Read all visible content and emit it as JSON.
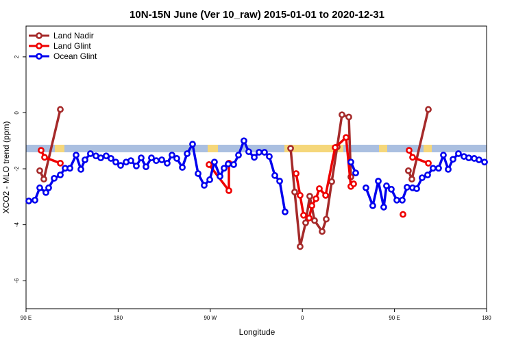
{
  "chart_data": {
    "type": "line",
    "title": "10N-15N June (Ver 10_raw)   2015-01-01 to 2020-12-31",
    "x_label": "Longitude",
    "y_label": "XCO2 - MLO trend (ppm)",
    "xlim": [
      90,
      540
    ],
    "ylim": [
      -7,
      3.1
    ],
    "xticks": [
      {
        "value": 90,
        "label": "90 E"
      },
      {
        "value": 180,
        "label": "180"
      },
      {
        "value": 270,
        "label": "90 W"
      },
      {
        "value": 360,
        "label": "0"
      },
      {
        "value": 450,
        "label": "90 E"
      },
      {
        "value": 540,
        "label": "180"
      }
    ],
    "yticks": [
      -6,
      -4,
      -2,
      0,
      2
    ],
    "legend": "top-left",
    "series": [
      {
        "name": "Land Nadir",
        "color": "#a52a2a",
        "x": [
          103.4,
          107.4,
          123.5,
          null,
          348.5,
          352.5,
          357.8,
          363.2,
          367.2,
          371.9,
          379.3,
          383.3,
          388.7,
          394.0,
          398.7,
          405.4,
          407.4,
          null,
          463.6,
          467.0,
          483.1
        ],
        "values": [
          -2.07,
          -2.37,
          0.12,
          null,
          -1.27,
          -2.83,
          -4.78,
          -3.93,
          -2.98,
          -3.85,
          -4.24,
          -3.8,
          -2.46,
          -1.22,
          -0.07,
          -0.15,
          -2.29,
          null,
          -2.07,
          -2.37,
          0.12
        ]
      },
      {
        "name": "Land Glint",
        "color": "#ee0000",
        "x": [
          104.7,
          108.1,
          123.5,
          null,
          268.8,
          288.2,
          288.2,
          null,
          353.9,
          357.8,
          361.2,
          366.6,
          369.3,
          373.3,
          376.6,
          382.7,
          392.0,
          402.7,
          407.4,
          410.1,
          null,
          458.3,
          null,
          464.3,
          467.7,
          483.1
        ],
        "values": [
          -1.34,
          -1.59,
          -1.8,
          null,
          -1.85,
          -2.78,
          -1.8,
          null,
          -2.17,
          -2.95,
          -3.66,
          -3.76,
          -3.32,
          -3.07,
          -2.71,
          -2.95,
          -1.24,
          -0.88,
          -2.63,
          -2.54,
          null,
          -3.63,
          null,
          -1.34,
          -1.59,
          -1.8
        ]
      },
      {
        "name": "Ocean Glint",
        "color": "#0000ee",
        "x": [
          92.7,
          98.7,
          103.4,
          109.4,
          112.1,
          117.5,
          123.5,
          128.2,
          132.9,
          138.9,
          143.6,
          147.6,
          152.9,
          158.3,
          163.0,
          168.3,
          173.0,
          177.7,
          182.4,
          187.8,
          192.4,
          197.8,
          202.5,
          207.2,
          212.5,
          217.2,
          222.6,
          227.9,
          232.6,
          237.3,
          242.7,
          247.4,
          252.7,
          258.1,
          264.1,
          269.5,
          274.1,
          279.5,
          283.5,
          287.5,
          292.9,
          297.6,
          302.9,
          307.6,
          313.0,
          317.7,
          323.0,
          327.7,
          333.1,
          337.8,
          343.1,
          null,
          407.4,
          412.1,
          null,
          422.1,
          428.8,
          434.2,
          439.5,
          442.2,
          446.9,
          452.3,
          457.6,
          462.3,
          467.7,
          471.7,
          477.0,
          482.4,
          487.7,
          493.1,
          497.8,
          502.5,
          507.2,
          512.5,
          517.9,
          522.6,
          527.9,
          532.6,
          538.0
        ],
        "values": [
          -3.15,
          -3.12,
          -2.68,
          -2.85,
          -2.68,
          -2.34,
          -2.22,
          -1.98,
          -1.98,
          -1.51,
          -2.02,
          -1.68,
          -1.46,
          -1.54,
          -1.61,
          -1.54,
          -1.63,
          -1.76,
          -1.88,
          -1.76,
          -1.71,
          -1.9,
          -1.61,
          -1.93,
          -1.61,
          -1.71,
          -1.68,
          -1.8,
          -1.51,
          -1.63,
          -1.95,
          -1.46,
          -1.12,
          -2.17,
          -2.59,
          -2.39,
          -1.76,
          -2.27,
          -1.98,
          -1.83,
          -1.85,
          -1.51,
          -1.0,
          -1.39,
          -1.59,
          -1.41,
          -1.41,
          -1.56,
          -2.24,
          -2.44,
          -3.54,
          null,
          -1.76,
          -2.15,
          null,
          -2.68,
          -3.32,
          -2.44,
          -3.37,
          -2.61,
          -2.73,
          -3.12,
          -3.12,
          -2.66,
          -2.68,
          -2.71,
          -2.32,
          -2.22,
          -1.98,
          -1.98,
          -1.51,
          -2.02,
          -1.66,
          -1.46,
          -1.56,
          -1.61,
          -1.63,
          -1.68,
          -1.76
        ]
      }
    ]
  }
}
